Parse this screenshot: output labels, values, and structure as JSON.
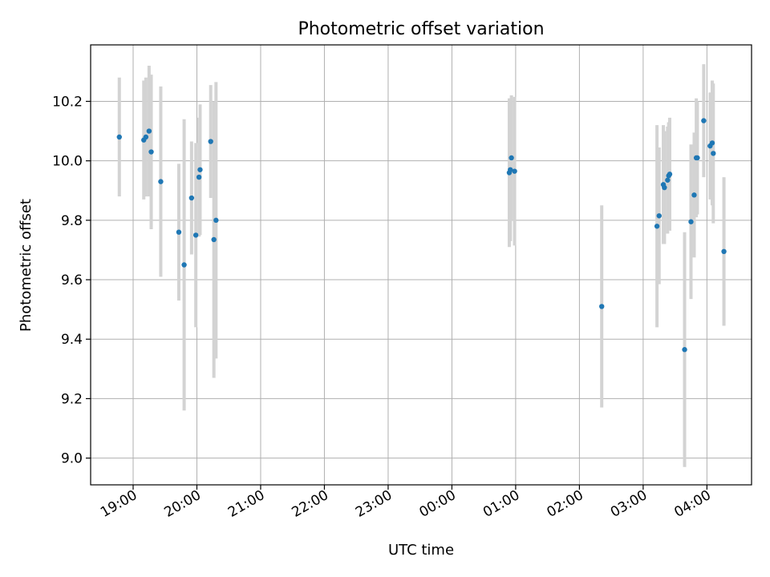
{
  "chart_data": {
    "type": "scatter",
    "title": "Photometric offset variation",
    "xlabel": "UTC time",
    "ylabel": "Photometric offset",
    "x_is_time": true,
    "x_ticks": [
      "19:00",
      "20:00",
      "21:00",
      "22:00",
      "23:00",
      "00:00",
      "01:00",
      "02:00",
      "03:00",
      "04:00"
    ],
    "y_ticks": [
      "9.0",
      "9.2",
      "9.4",
      "9.6",
      "9.8",
      "10.0",
      "10.2"
    ],
    "ylim": [
      8.91,
      10.39
    ],
    "xlim": [
      "18:20",
      "04:42"
    ],
    "grid": true,
    "colors": {
      "point": "#1f77b4",
      "errorbar": "#d3d3d3",
      "grid": "#b0b0b0"
    },
    "points": [
      {
        "x": "18:47",
        "y": 10.08,
        "yerr": 0.2
      },
      {
        "x": "19:10",
        "y": 10.07,
        "yerr": 0.2
      },
      {
        "x": "19:12",
        "y": 10.08,
        "yerr": 0.2
      },
      {
        "x": "19:15",
        "y": 10.1,
        "yerr": 0.22
      },
      {
        "x": "19:17",
        "y": 10.03,
        "yerr": 0.26
      },
      {
        "x": "19:26",
        "y": 9.93,
        "yerr": 0.32
      },
      {
        "x": "19:43",
        "y": 9.76,
        "yerr": 0.23
      },
      {
        "x": "19:48",
        "y": 9.65,
        "yerr": 0.49
      },
      {
        "x": "19:55",
        "y": 9.875,
        "yerr": 0.19
      },
      {
        "x": "19:59",
        "y": 9.75,
        "yerr": 0.31
      },
      {
        "x": "20:02",
        "y": 9.945,
        "yerr": 0.2
      },
      {
        "x": "20:03",
        "y": 9.97,
        "yerr": 0.22
      },
      {
        "x": "20:13",
        "y": 10.065,
        "yerr": 0.19
      },
      {
        "x": "20:16",
        "y": 9.735,
        "yerr": 0.465
      },
      {
        "x": "20:18",
        "y": 9.8,
        "yerr": 0.465
      },
      {
        "x": "00:54",
        "y": 9.96,
        "yerr": 0.25
      },
      {
        "x": "00:55",
        "y": 9.97,
        "yerr": 0.24
      },
      {
        "x": "00:56",
        "y": 10.01,
        "yerr": 0.21
      },
      {
        "x": "00:59",
        "y": 9.965,
        "yerr": 0.25
      },
      {
        "x": "02:21",
        "y": 9.51,
        "yerr": 0.34
      },
      {
        "x": "03:13",
        "y": 9.78,
        "yerr": 0.34
      },
      {
        "x": "03:15",
        "y": 9.815,
        "yerr": 0.23
      },
      {
        "x": "03:19",
        "y": 9.92,
        "yerr": 0.2
      },
      {
        "x": "03:20",
        "y": 9.91,
        "yerr": 0.19
      },
      {
        "x": "03:23",
        "y": 9.935,
        "yerr": 0.18
      },
      {
        "x": "03:24",
        "y": 9.95,
        "yerr": 0.18
      },
      {
        "x": "03:25",
        "y": 9.955,
        "yerr": 0.19
      },
      {
        "x": "03:39",
        "y": 9.365,
        "yerr": 0.395
      },
      {
        "x": "03:45",
        "y": 9.795,
        "yerr": 0.26
      },
      {
        "x": "03:48",
        "y": 9.885,
        "yerr": 0.21
      },
      {
        "x": "03:50",
        "y": 10.01,
        "yerr": 0.2
      },
      {
        "x": "03:51",
        "y": 10.01,
        "yerr": 0.19
      },
      {
        "x": "03:57",
        "y": 10.135,
        "yerr": 0.19
      },
      {
        "x": "04:03",
        "y": 10.05,
        "yerr": 0.18
      },
      {
        "x": "04:05",
        "y": 10.06,
        "yerr": 0.21
      },
      {
        "x": "04:06",
        "y": 10.025,
        "yerr": 0.235
      },
      {
        "x": "04:16",
        "y": 9.695,
        "yerr": 0.25
      }
    ]
  }
}
